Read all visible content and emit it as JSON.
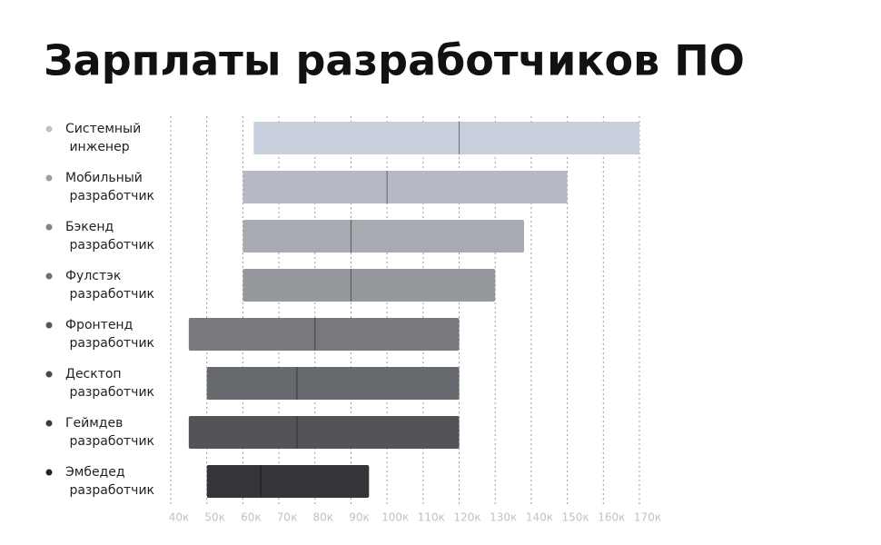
{
  "chart_data": {
    "type": "range_bar",
    "title": "Зарплаты разработчиков ПО",
    "categories": [
      "Системный инженер",
      "Мобильный разработчик",
      "Бэкенд разработчик",
      "Фулстэк разработчик",
      "Фронтенд разработчик",
      "Десктоп разработчик",
      "Геймдев разработчик",
      "Эмбедед разработчик"
    ],
    "min": [
      63,
      60,
      60,
      60,
      45,
      50,
      45,
      50
    ],
    "median": [
      120,
      100,
      90,
      90,
      80,
      75,
      75,
      65
    ],
    "max": [
      170,
      150,
      138,
      130,
      120,
      120,
      120,
      95
    ],
    "colors": [
      "#c6cfdb",
      "#b4b9c3",
      "#a7abb1",
      "#95989d",
      "#77797d",
      "#66696d",
      "#525457",
      "#333539"
    ],
    "dot_colors": [
      "#b7c2d2",
      "#9aa1ad",
      "#80858d",
      "#6c7076",
      "#55585d",
      "#45484c",
      "#393b3f",
      "#222326"
    ],
    "xlim": [
      40,
      170
    ],
    "xticks": [
      {
        "value": 40,
        "label": "40к"
      },
      {
        "value": 50,
        "label": "50к"
      },
      {
        "value": 60,
        "label": "60к"
      },
      {
        "value": 70,
        "label": "70к"
      },
      {
        "value": 80,
        "label": "80к"
      },
      {
        "value": 90,
        "label": "90к"
      },
      {
        "value": 100,
        "label": "100к"
      },
      {
        "value": 110,
        "label": "110к"
      },
      {
        "value": 120,
        "label": "120к"
      },
      {
        "value": 130,
        "label": "130к"
      },
      {
        "value": 140,
        "label": "140к"
      },
      {
        "value": 150,
        "label": "150к"
      },
      {
        "value": 160,
        "label": "160к"
      },
      {
        "value": 170,
        "label": "170к"
      }
    ],
    "grid": true
  }
}
